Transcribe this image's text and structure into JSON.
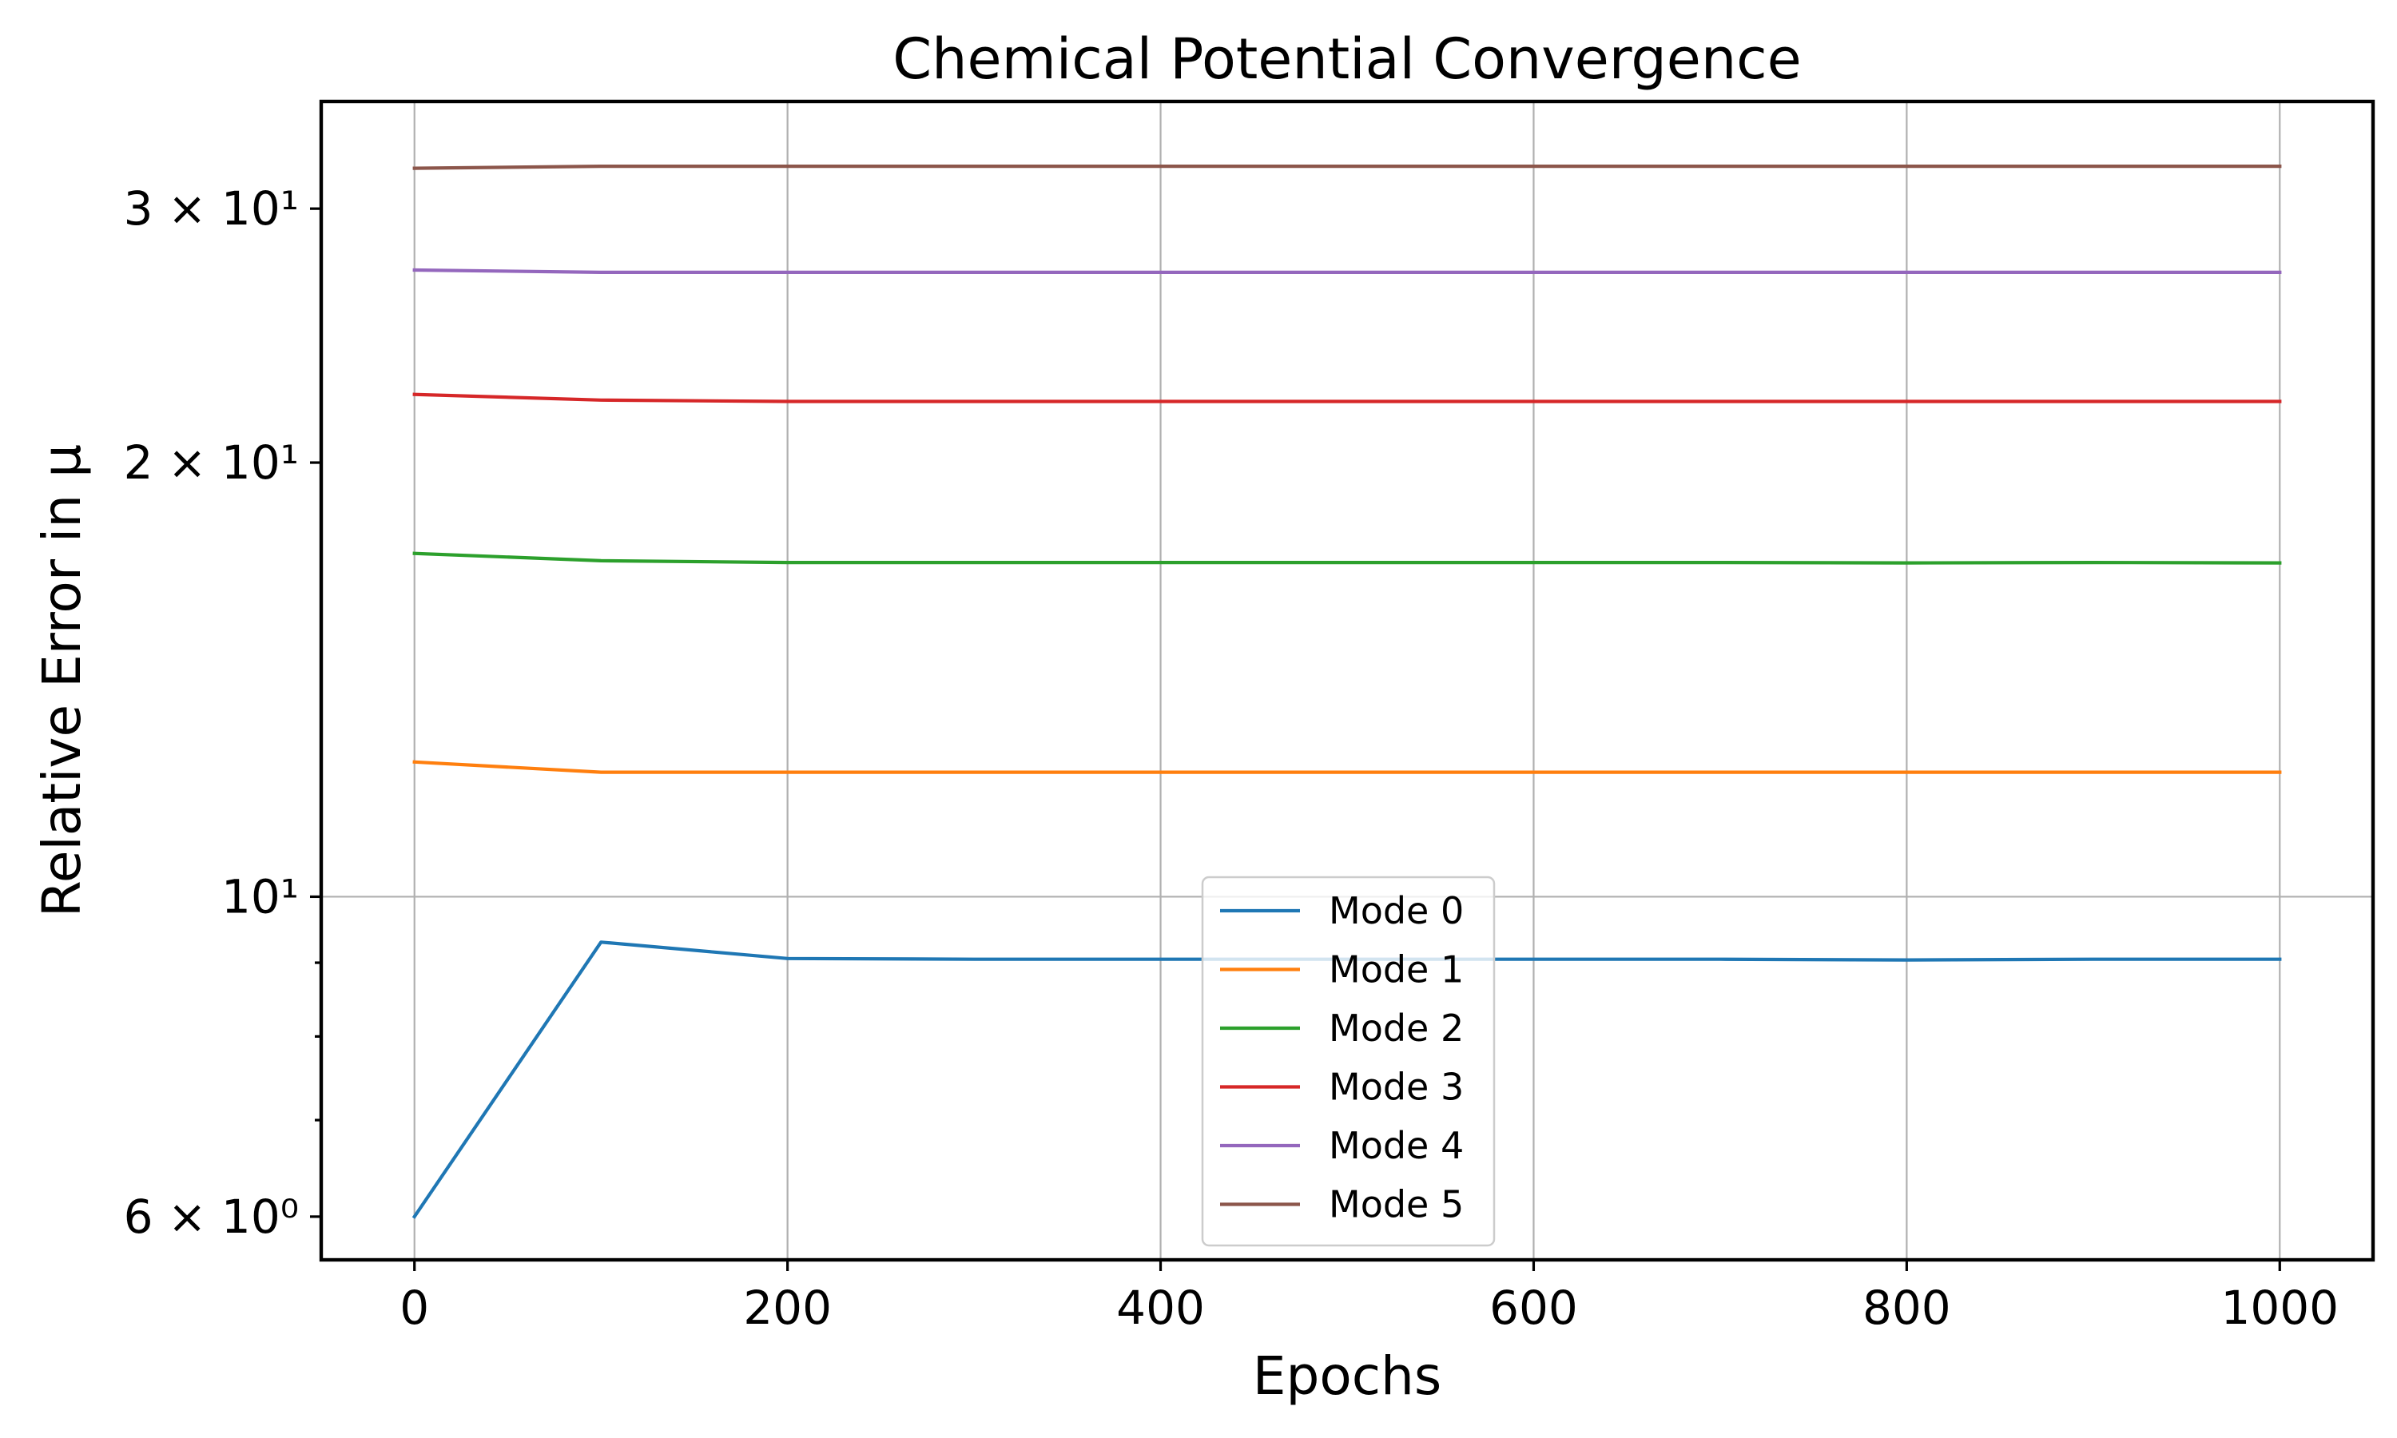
{
  "chart_data": {
    "type": "line",
    "title": "Chemical Potential Convergence",
    "xlabel": "Epochs",
    "ylabel": "Relative Error in μ",
    "y_scale": "log",
    "xlim": [
      -50,
      1050
    ],
    "ylim": [
      5.6,
      35.6
    ],
    "grid": true,
    "legend_position": "bottom-center",
    "x_ticks": [
      {
        "value": 0,
        "label": "0"
      },
      {
        "value": 200,
        "label": "200"
      },
      {
        "value": 400,
        "label": "400"
      },
      {
        "value": 600,
        "label": "600"
      },
      {
        "value": 800,
        "label": "800"
      },
      {
        "value": 1000,
        "label": "1000"
      }
    ],
    "y_ticks": [
      {
        "value": 6,
        "label": "6 × 10⁰"
      },
      {
        "value": 10,
        "label": "10¹"
      },
      {
        "value": 20,
        "label": "2 × 10¹"
      },
      {
        "value": 30,
        "label": "3 × 10¹"
      }
    ],
    "y_minor_ticks": [
      7,
      8,
      9
    ],
    "x": [
      0,
      100,
      200,
      300,
      400,
      500,
      600,
      700,
      800,
      900,
      1000
    ],
    "series": [
      {
        "name": "Mode 0",
        "color": "#1f77b4",
        "values": [
          6.0,
          9.3,
          9.06,
          9.05,
          9.05,
          9.05,
          9.05,
          9.05,
          9.04,
          9.05,
          9.05
        ]
      },
      {
        "name": "Mode 1",
        "color": "#ff7f0e",
        "values": [
          12.4,
          12.2,
          12.2,
          12.2,
          12.2,
          12.2,
          12.2,
          12.2,
          12.2,
          12.2,
          12.2
        ]
      },
      {
        "name": "Mode 2",
        "color": "#2ca02c",
        "values": [
          17.3,
          17.1,
          17.05,
          17.05,
          17.05,
          17.05,
          17.05,
          17.05,
          17.04,
          17.05,
          17.04
        ]
      },
      {
        "name": "Mode 3",
        "color": "#d62728",
        "values": [
          22.3,
          22.1,
          22.05,
          22.05,
          22.05,
          22.05,
          22.05,
          22.05,
          22.05,
          22.05,
          22.05
        ]
      },
      {
        "name": "Mode 4",
        "color": "#9467bd",
        "values": [
          27.2,
          27.1,
          27.1,
          27.1,
          27.1,
          27.1,
          27.1,
          27.1,
          27.1,
          27.1,
          27.1
        ]
      },
      {
        "name": "Mode 5",
        "color": "#8c564b",
        "values": [
          32.0,
          32.1,
          32.1,
          32.1,
          32.1,
          32.1,
          32.1,
          32.1,
          32.1,
          32.1,
          32.1
        ]
      }
    ]
  }
}
